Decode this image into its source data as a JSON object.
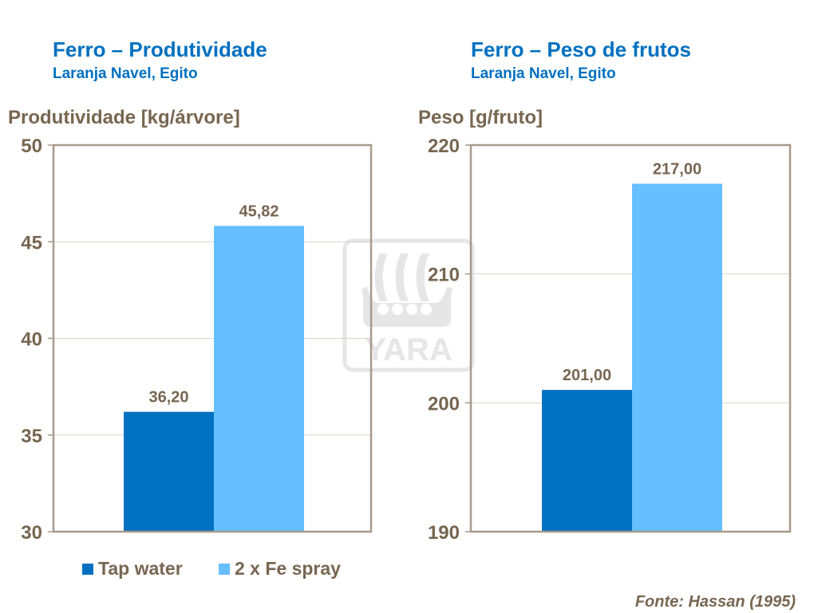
{
  "chart_data": [
    {
      "type": "bar",
      "title": "Ferro – Produtividade",
      "subtitle": "Laranja Navel, Egito",
      "ylabel": "Produtividade [kg/árvore]",
      "ylim": [
        30,
        50
      ],
      "yticks": [
        "30",
        "35",
        "40",
        "45",
        "50"
      ],
      "yticks_values": [
        30,
        35,
        40,
        45,
        50
      ],
      "grid": true,
      "series": [
        {
          "name": "Tap water",
          "values": [
            36.2
          ],
          "label": "36,20"
        },
        {
          "name": "2 x Fe spray",
          "values": [
            45.82
          ],
          "label": "45,82"
        }
      ]
    },
    {
      "type": "bar",
      "title": "Ferro – Peso de frutos",
      "subtitle": "Laranja Navel, Egito",
      "ylabel": "Peso [g/fruto]",
      "ylim": [
        190,
        220
      ],
      "yticks": [
        "190",
        "200",
        "210",
        "220"
      ],
      "yticks_values": [
        190,
        200,
        210,
        220
      ],
      "grid": true,
      "series": [
        {
          "name": "Tap water",
          "values": [
            201.0
          ],
          "label": "201,00"
        },
        {
          "name": "2 x Fe spray",
          "values": [
            217.0
          ],
          "label": "217,00"
        }
      ]
    }
  ],
  "legend": {
    "placement": "bottom-left",
    "items": [
      "Tap water",
      "2 x Fe spray"
    ]
  },
  "colors": {
    "tap_water": "#0070C0",
    "fe_spray": "#66BFFF",
    "title": "#0070C0",
    "text": "#776650"
  },
  "source": "Fonte: Hassan (1995)",
  "watermark": {
    "logo": "YARA"
  }
}
